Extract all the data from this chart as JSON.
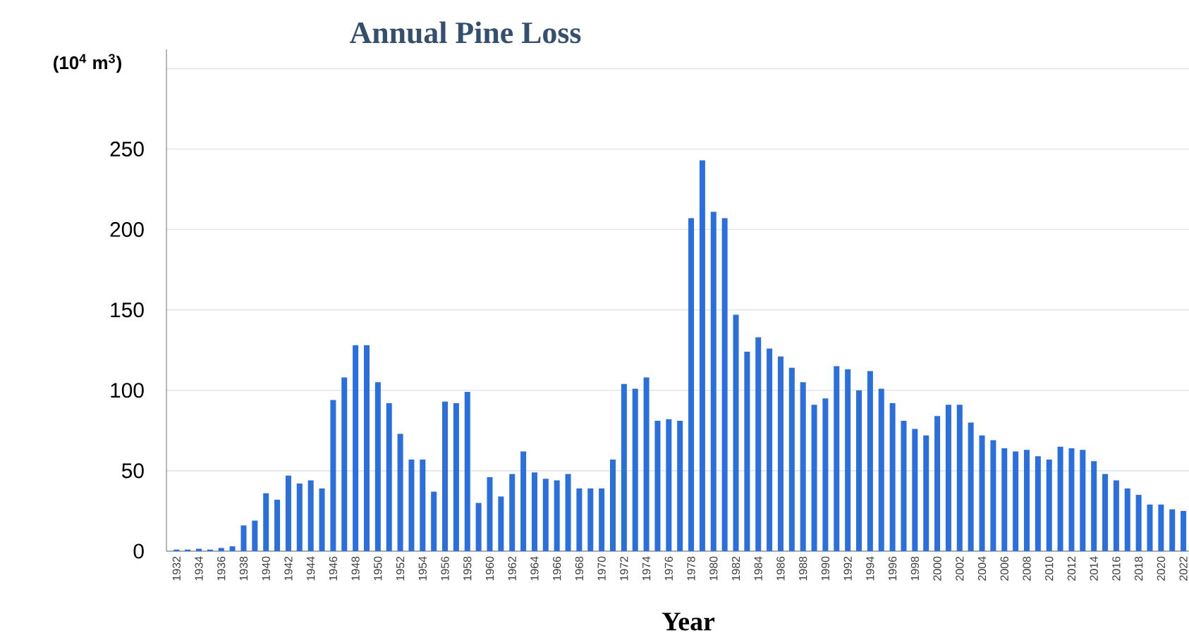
{
  "chart_data": {
    "type": "bar",
    "title": "Annual Pine Loss",
    "xlabel": "Year",
    "ylabel": "(10$^{4}$ m$^{3}$)",
    "categories": [
      "1932",
      null,
      "1934",
      null,
      "1936",
      null,
      "1938",
      null,
      "1940",
      null,
      "1942",
      null,
      "1944",
      null,
      "1946",
      null,
      "1948",
      null,
      "1950",
      null,
      "1952",
      null,
      "1954",
      null,
      "1956",
      null,
      "1958",
      null,
      "1960",
      null,
      "1962",
      null,
      "1964",
      null,
      "1966",
      null,
      "1968",
      null,
      "1970",
      null,
      "1972",
      null,
      "1974",
      null,
      "1976",
      null,
      "1978",
      null,
      "1980",
      null,
      "1982",
      null,
      "1984",
      null,
      "1986",
      null,
      "1988",
      null,
      "1990",
      null,
      "1992",
      null,
      "1994",
      null,
      "1996",
      null,
      "1998",
      null,
      "2000",
      null,
      "2002",
      null,
      "2004",
      null,
      "2006",
      null,
      "2008",
      null,
      "2010",
      null,
      "2012",
      null,
      "2014",
      null,
      "2016",
      null,
      "2018",
      null,
      "2020",
      null,
      "2022"
    ],
    "values": [
      1,
      1,
      1.5,
      1,
      2,
      3,
      16,
      19,
      36,
      32,
      47,
      42,
      44,
      39,
      94,
      108,
      128,
      128,
      105,
      92,
      73,
      57,
      57,
      37,
      93,
      92,
      99,
      30,
      46,
      34,
      48,
      62,
      49,
      45,
      44,
      48,
      39,
      39,
      39,
      57,
      104,
      101,
      108,
      81,
      82,
      81,
      207,
      243,
      211,
      207,
      147,
      124,
      133,
      126,
      121,
      114,
      105,
      91,
      95,
      115,
      113,
      100,
      112,
      101,
      92,
      81,
      76,
      72,
      84,
      91,
      91,
      80,
      72,
      69,
      64,
      62,
      63,
      59,
      57,
      65,
      64,
      63,
      56,
      48,
      44,
      39,
      35,
      29,
      29,
      26,
      25
    ],
    "color": "#2a6fdb",
    "ylim": [
      0,
      312
    ],
    "yticks": [
      0,
      50,
      100,
      150,
      200,
      250,
      {
        "value": 300,
        "label": null
      }
    ],
    "grid": "y"
  }
}
